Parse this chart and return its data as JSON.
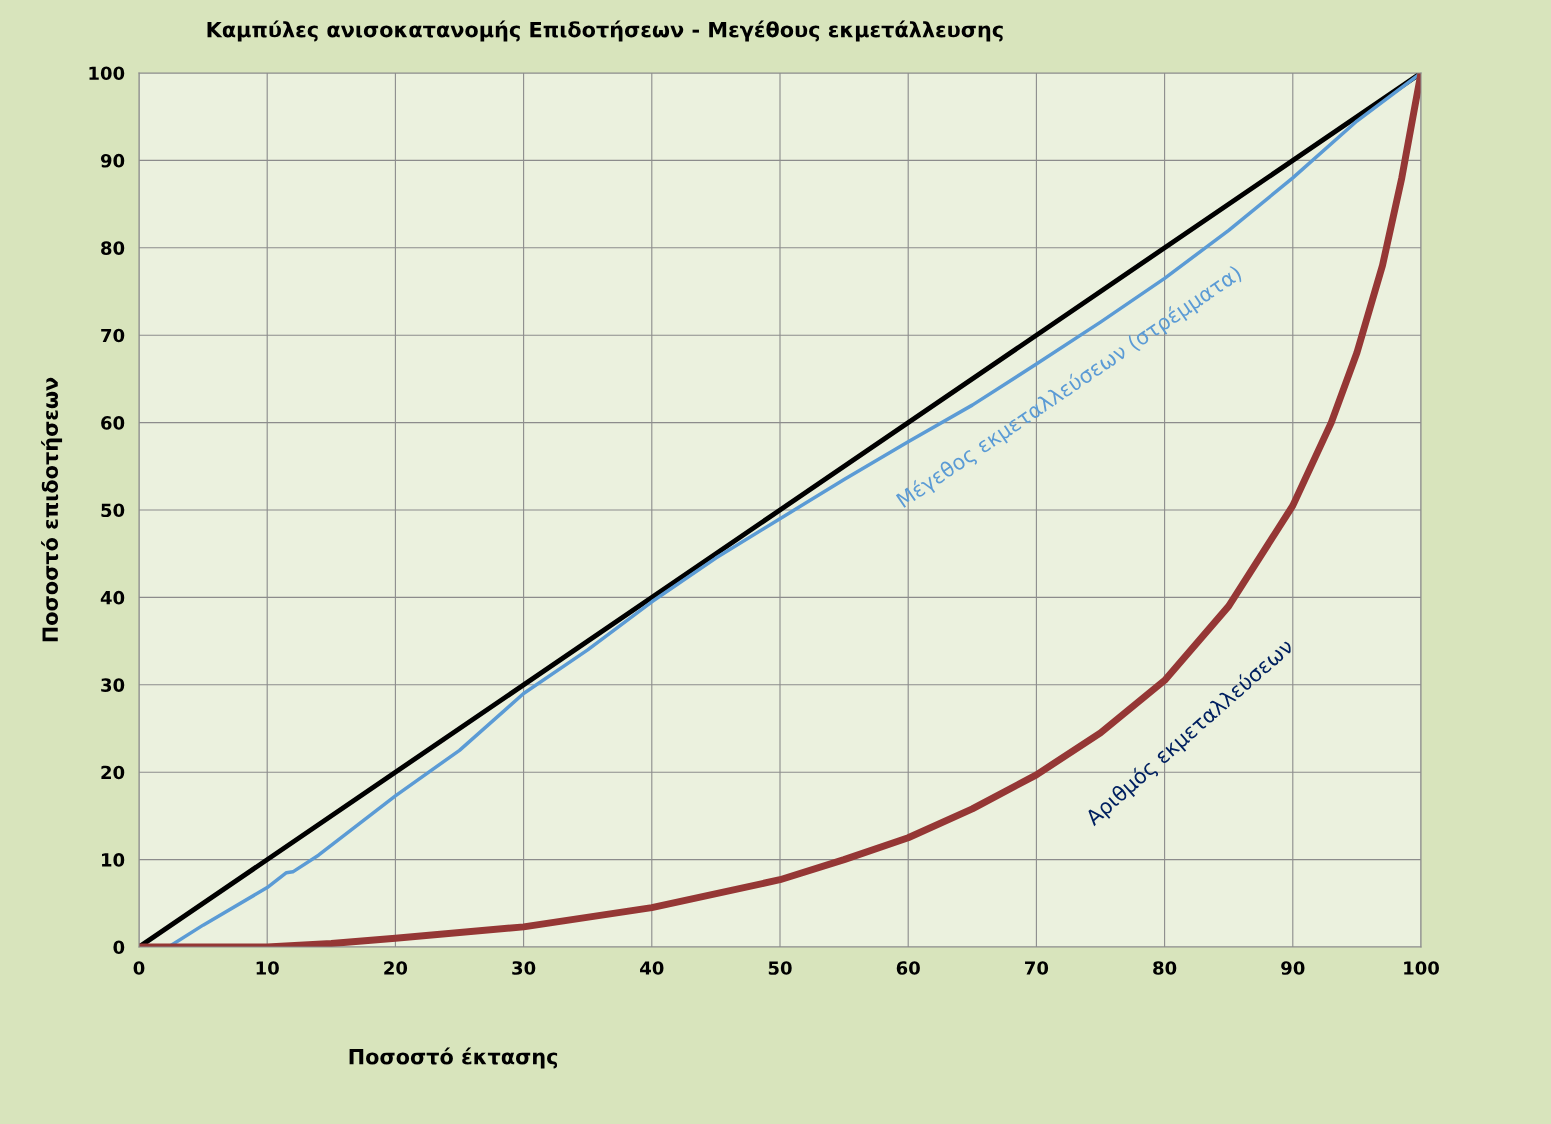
{
  "chart_data": {
    "type": "line",
    "title": "Καμπύλες ανισοκατανομής Επιδοτήσεων - Μεγέθους εκμετάλλευσης",
    "xlabel": "Ποσοστό έκτασης",
    "ylabel": "Ποσοστό επιδοτήσεων",
    "series": [
      {
        "color": "#000000",
        "x": [
          0,
          100
        ],
        "values": [
          0,
          100
        ]
      },
      {
        "name": "Μέγεθος εκμεταλλεύσεων (στρέμματα)",
        "color": "#5b9bd5",
        "x": [
          0,
          2.3,
          5,
          10,
          11.5,
          12,
          14,
          20,
          25,
          30,
          35,
          40,
          45,
          50,
          55,
          60,
          65,
          70,
          75,
          80,
          85,
          90,
          95,
          100
        ],
        "values": [
          0,
          0,
          2.5,
          6.8,
          8.5,
          8.6,
          10.5,
          17.3,
          22.5,
          29,
          34,
          39.5,
          44.5,
          49,
          53.5,
          57.8,
          62,
          66.7,
          71.5,
          76.5,
          82,
          88,
          94.5,
          100
        ]
      },
      {
        "name": "Αριθμός εκμεταλλεύσεων",
        "color": "#953735",
        "x": [
          0,
          10,
          15,
          20,
          30,
          40,
          50,
          55,
          60,
          65,
          70,
          75,
          80,
          85,
          90,
          93,
          95,
          97,
          98.5,
          100
        ],
        "values": [
          0,
          0,
          0.4,
          1.0,
          2.3,
          4.5,
          7.7,
          10,
          12.5,
          15.8,
          19.7,
          24.5,
          30.5,
          39,
          50.5,
          60,
          68,
          78,
          88,
          100
        ]
      }
    ],
    "xlim": [
      0,
      100
    ],
    "ylim": [
      0,
      100
    ],
    "xticks": [
      0,
      10,
      20,
      30,
      40,
      50,
      60,
      70,
      80,
      90,
      100
    ],
    "yticks": [
      0,
      10,
      20,
      30,
      40,
      50,
      60,
      70,
      80,
      90,
      100
    ],
    "grid": true,
    "legend": false
  }
}
